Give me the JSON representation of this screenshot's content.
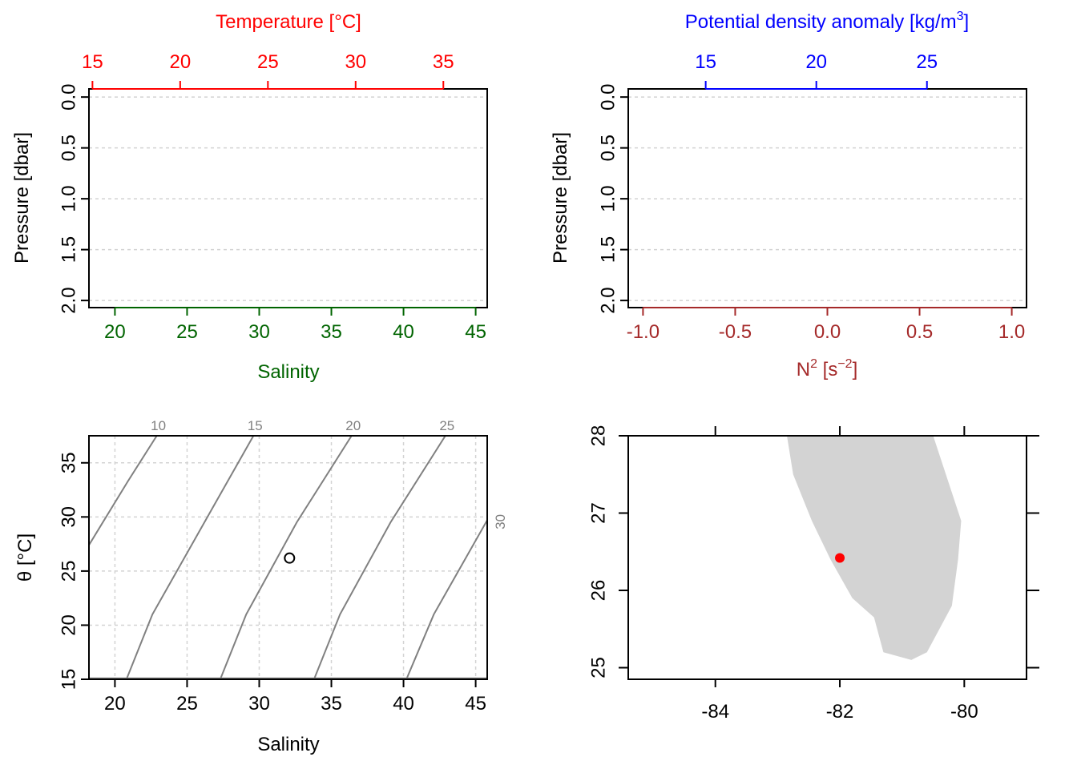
{
  "colors": {
    "temperature": "#ff0000",
    "salinity": "#006400",
    "density": "#0000ff",
    "n2": "#a52a2a",
    "contour": "#808080",
    "land": "#d3d3d3",
    "station": "#ff0000",
    "grid": "#d3d3d3"
  },
  "chart_data": [
    {
      "id": "profile-ts",
      "type": "line",
      "top_axis": {
        "title": "Temperature [°C]",
        "ticks": [
          "15",
          "20",
          "25",
          "30",
          "35"
        ],
        "range": [
          14.8,
          37.5
        ]
      },
      "bottom_axis": {
        "title": "Salinity",
        "ticks": [
          "20",
          "25",
          "30",
          "35",
          "40",
          "45"
        ],
        "range": [
          18.2,
          45.8
        ]
      },
      "left_axis": {
        "title": "Pressure [dbar]",
        "ticks": [
          "0.0",
          "0.5",
          "1.0",
          "1.5",
          "2.0"
        ],
        "range": [
          2.07,
          -0.08
        ],
        "reversed": true
      },
      "grid": true,
      "series": []
    },
    {
      "id": "profile-density-n2",
      "type": "line",
      "top_axis": {
        "title_text": "Potential density anomaly [kg/m",
        "title_sup": "3",
        "title_end": "]",
        "ticks": [
          "15",
          "20",
          "25"
        ],
        "range": [
          11.5,
          29.5
        ]
      },
      "bottom_axis": {
        "title_base": "N",
        "title_sup1": "2",
        "title_mid": " [s",
        "title_sup2": "−2",
        "title_end": "]",
        "ticks": [
          "-1.0",
          "-0.5",
          "0.0",
          "0.5",
          "1.0"
        ],
        "range": [
          -1.08,
          1.08
        ]
      },
      "left_axis": {
        "title": "Pressure [dbar]",
        "ticks": [
          "0.0",
          "0.5",
          "1.0",
          "1.5",
          "2.0"
        ],
        "range": [
          2.07,
          -0.08
        ],
        "reversed": true
      },
      "grid": true,
      "series": []
    },
    {
      "id": "ts-diagram",
      "type": "scatter",
      "x_axis": {
        "title": "Salinity",
        "ticks": [
          "20",
          "25",
          "30",
          "35",
          "40",
          "45"
        ],
        "range": [
          18.2,
          45.8
        ]
      },
      "y_axis": {
        "title": "θ [°C]",
        "ticks": [
          "15",
          "20",
          "25",
          "30",
          "35"
        ],
        "range": [
          15,
          37.5
        ]
      },
      "grid": true,
      "density_contours": [
        {
          "label": "10",
          "points": [
            [
              18.2,
              27.4
            ],
            [
              20.9,
              33.3
            ],
            [
              22.9,
              37.5
            ]
          ]
        },
        {
          "label": "15",
          "points": [
            [
              20.8,
              15
            ],
            [
              22.6,
              21.0
            ],
            [
              26.2,
              29.5
            ],
            [
              29.6,
              37.5
            ]
          ]
        },
        {
          "label": "20",
          "points": [
            [
              27.3,
              15
            ],
            [
              29.1,
              21.0
            ],
            [
              32.6,
              29.5
            ],
            [
              36.4,
              37.5
            ]
          ]
        },
        {
          "label": "25",
          "points": [
            [
              33.8,
              15
            ],
            [
              35.6,
              21.0
            ],
            [
              39.1,
              29.5
            ],
            [
              42.9,
              37.5
            ]
          ]
        },
        {
          "label": "30",
          "points": [
            [
              40.2,
              15
            ],
            [
              42.1,
              21.0
            ],
            [
              45.8,
              29.7
            ]
          ]
        }
      ],
      "points": [
        {
          "x": 32.1,
          "y": 26.2
        }
      ]
    },
    {
      "id": "station-map",
      "type": "scatter",
      "x_axis": {
        "ticks": [
          "-84",
          "-82",
          "-80"
        ],
        "range": [
          -85.4,
          -79.0
        ]
      },
      "y_axis": {
        "ticks": [
          "25",
          "26",
          "27",
          "28"
        ],
        "range": [
          24.85,
          28.0
        ]
      },
      "coastline": [
        [
          -82.85,
          28.0
        ],
        [
          -82.75,
          27.5
        ],
        [
          -82.45,
          26.9
        ],
        [
          -82.15,
          26.4
        ],
        [
          -81.8,
          25.9
        ],
        [
          -81.45,
          25.65
        ],
        [
          -81.3,
          25.2
        ],
        [
          -80.85,
          25.1
        ],
        [
          -80.6,
          25.2
        ],
        [
          -80.2,
          25.8
        ],
        [
          -80.1,
          26.4
        ],
        [
          -80.05,
          26.9
        ],
        [
          -80.5,
          28.0
        ]
      ],
      "station": {
        "lon": -82.0,
        "lat": 26.42
      }
    }
  ]
}
